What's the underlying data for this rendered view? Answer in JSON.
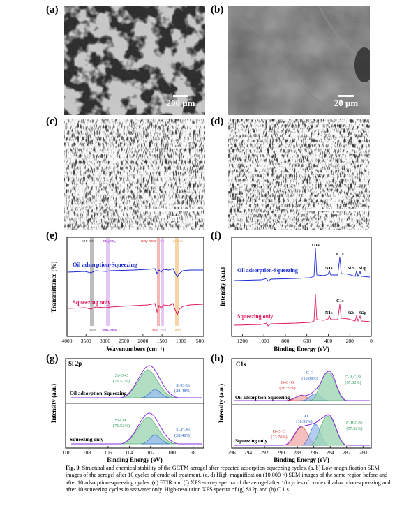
{
  "panels": {
    "a": {
      "label": "(a)",
      "scale": "200 μm"
    },
    "b": {
      "label": "(b)",
      "scale": "20 μm"
    },
    "c": {
      "label": "(c)",
      "scale": "5 μm"
    },
    "d": {
      "label": "(d)",
      "scale": "5 μm"
    },
    "e": {
      "label": "(e)"
    },
    "f": {
      "label": "(f)"
    },
    "g": {
      "label": "(g)"
    },
    "h": {
      "label": "(h)"
    }
  },
  "chart_data": [
    {
      "type": "line",
      "panel": "e",
      "xlabel": "Wavenumbers (cm⁻¹)",
      "ylabel": "Transmittance (%)",
      "xlim": [
        4000,
        400
      ],
      "x_ticks": [
        4000,
        3500,
        3000,
        2500,
        2000,
        1500,
        1000,
        500
      ],
      "series": [
        {
          "name": "Oil adsorption-Squeezing",
          "color": "#1a2bd0"
        },
        {
          "name": "Squeezing only",
          "color": "#e0185a"
        }
      ],
      "band_labels": [
        {
          "text": "-OH/-NH",
          "color": "#333333"
        },
        {
          "text": "-CH₂/CH₃",
          "color": "#9b30d0"
        },
        {
          "text": "NH₂/-COO",
          "color": "#e03030"
        },
        {
          "text": "N-H",
          "color": "#c080e0"
        },
        {
          "text": "Si-O-Si",
          "color": "#e09020"
        }
      ],
      "band_values": [
        {
          "text": "3365",
          "color": "#555555"
        },
        {
          "text": "3000~2880",
          "color": "#9b30d0"
        },
        {
          "text": "1634",
          "color": "#e03030"
        },
        {
          "text": "1550",
          "color": "#c080e0"
        },
        {
          "text": "1017",
          "color": "#e09020"
        }
      ]
    },
    {
      "type": "line",
      "panel": "f",
      "xlabel": "Binding Energy (eV)",
      "ylabel": "Intensity (a.u.)",
      "xlim": [
        1300,
        0
      ],
      "x_ticks": [
        1200,
        1000,
        800,
        600,
        400,
        200,
        0
      ],
      "series": [
        {
          "name": "Oil adsorption-Squeezing",
          "color": "#1a2bd0"
        },
        {
          "name": "Squeezing only",
          "color": "#e0185a"
        }
      ],
      "peaks": [
        "O1s",
        "C1s",
        "N1s",
        "Si2s",
        "Si2p"
      ]
    },
    {
      "type": "line",
      "panel": "g",
      "title": "Si 2p",
      "xlabel": "Binding Energy (eV)",
      "ylabel": "Intensity (a.u.)",
      "xlim": [
        110,
        97
      ],
      "x_ticks": [
        110,
        108,
        106,
        104,
        102,
        100,
        98
      ],
      "series": [
        {
          "name": "Oil adsorption-Squeezing",
          "components": [
            {
              "label": "Si-O-C",
              "percent": "(71.52%)"
            },
            {
              "label": "Si-O-Si",
              "percent": "(28.48%)"
            }
          ]
        },
        {
          "name": "Squeezing only",
          "components": [
            {
              "label": "Si-O-C",
              "percent": "(71.52%)"
            },
            {
              "label": "Si-O-Si",
              "percent": "(28.48%)"
            }
          ]
        }
      ]
    },
    {
      "type": "line",
      "panel": "h",
      "title": "C1s",
      "xlabel": "Binding Energy (eV)",
      "ylabel": "Intensity (a.u.)",
      "xlim": [
        296,
        279
      ],
      "x_ticks": [
        296,
        294,
        292,
        290,
        288,
        286,
        284,
        282,
        280
      ],
      "series": [
        {
          "name": "Oil adsorption-Squeezing",
          "components": [
            {
              "label": "O-C=O",
              "percent": "(16.59%)"
            },
            {
              "label": "C-O",
              "percent": "(16.09%)"
            },
            {
              "label": "C-H,C-Si",
              "percent": "(67.32%)"
            }
          ]
        },
        {
          "name": "Squeezing only",
          "components": [
            {
              "label": "O-C=O",
              "percent": "(23.76%)"
            },
            {
              "label": "C-O",
              "percent": "(18.92%)"
            },
            {
              "label": "C-H,C-Si",
              "percent": "(57.32%)"
            }
          ]
        }
      ]
    }
  ],
  "caption": {
    "fig": "Fig. 9.",
    "text": "Structural and chemical stability of the GCTM aerogel after repeated adsorption-squeezing cycles. (a, b) Low-magnification SEM images of the aerogel after 10 cycles of crude oil treatment. (c, d) High-magnification (10,000 ×) SEM images of the same region before and after 10 adsorption-squeezing cycles. (e) FTIR and (f) XPS survey spectra of the aerogel after 10 cycles of crude oil adsorption-squeezing and after 10 squeezing cycles in seawater only. High-resolution XPS spectra of (g) Si 2p and (h) C 1 s."
  }
}
